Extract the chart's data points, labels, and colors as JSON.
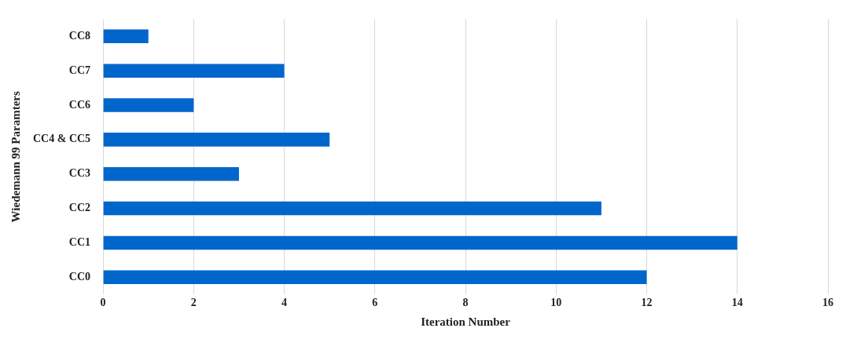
{
  "chart_data": {
    "type": "bar",
    "orientation": "horizontal",
    "xlabel": "Iteration Number",
    "ylabel": "Wiedemann 99 Paramters",
    "categories": [
      "CC8",
      "CC7",
      "CC6",
      "CC4 & CC5",
      "CC3",
      "CC2",
      "CC1",
      "CC0"
    ],
    "values": [
      1,
      4,
      2,
      5,
      3,
      11,
      14,
      12
    ],
    "color": "#0066cc",
    "xlim": [
      0,
      16
    ],
    "xticks": [
      0,
      2,
      4,
      6,
      8,
      10,
      12,
      14,
      16
    ],
    "grid": "x"
  }
}
